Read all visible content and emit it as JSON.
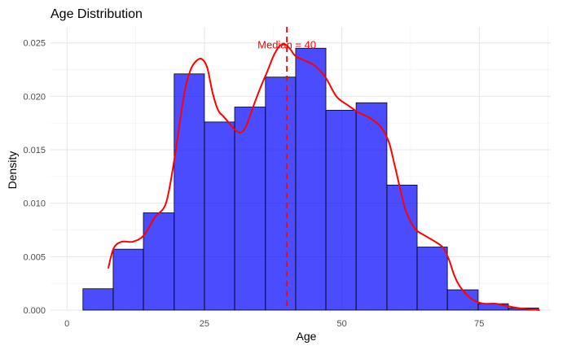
{
  "chart_data": {
    "type": "bar",
    "title": "Age Distribution",
    "xlabel": "Age",
    "ylabel": "Density",
    "xlim": [
      -3,
      88
    ],
    "ylim": [
      0,
      0.0265
    ],
    "x_ticks": [
      0,
      25,
      50,
      75
    ],
    "y_ticks": [
      0.0,
      0.005,
      0.01,
      0.015,
      0.02,
      0.025
    ],
    "y_tick_labels": [
      "0.000",
      "0.005",
      "0.010",
      "0.015",
      "0.020",
      "0.025"
    ],
    "grid": true,
    "bar_color": "#0000ff",
    "bar_edge_color": "#000000",
    "density_color": "#ff0000",
    "bins": [
      {
        "x0": 2.9,
        "x1": 8.4,
        "density": 0.002
      },
      {
        "x0": 8.4,
        "x1": 13.9,
        "density": 0.0057
      },
      {
        "x0": 13.9,
        "x1": 19.5,
        "density": 0.0091
      },
      {
        "x0": 19.5,
        "x1": 25.0,
        "density": 0.0221
      },
      {
        "x0": 25.0,
        "x1": 30.5,
        "density": 0.0176
      },
      {
        "x0": 30.5,
        "x1": 36.1,
        "density": 0.019
      },
      {
        "x0": 36.1,
        "x1": 41.6,
        "density": 0.0218
      },
      {
        "x0": 41.6,
        "x1": 47.1,
        "density": 0.0245
      },
      {
        "x0": 47.1,
        "x1": 52.6,
        "density": 0.0187
      },
      {
        "x0": 52.6,
        "x1": 58.2,
        "density": 0.0194
      },
      {
        "x0": 58.2,
        "x1": 63.7,
        "density": 0.0117
      },
      {
        "x0": 63.7,
        "x1": 69.2,
        "density": 0.0059
      },
      {
        "x0": 69.2,
        "x1": 74.8,
        "density": 0.0019
      },
      {
        "x0": 74.8,
        "x1": 80.3,
        "density": 0.0006
      },
      {
        "x0": 80.3,
        "x1": 85.8,
        "density": 0.0002
      }
    ],
    "density_curve": {
      "x": [
        7.5,
        8.5,
        10,
        12,
        14,
        16,
        18,
        19.5,
        20.5,
        21.5,
        22.5,
        23.5,
        24.5,
        25.5,
        26.5,
        27.5,
        28.5,
        29.5,
        30.5,
        31.5,
        32.5,
        33.5,
        34.5,
        35.5,
        36.5,
        37.5,
        38.5,
        39.5,
        40.5,
        41.5,
        43,
        45,
        47,
        49,
        51,
        53,
        55,
        57,
        58.5,
        59.5,
        60.5,
        61.5,
        62.5,
        63.5,
        65,
        67,
        68.5,
        69.5,
        70.5,
        71.5,
        73,
        74.5,
        76,
        78,
        80,
        82,
        84,
        86
      ],
      "y": [
        0.0039,
        0.0058,
        0.0064,
        0.0064,
        0.007,
        0.0087,
        0.01,
        0.014,
        0.0175,
        0.0207,
        0.0225,
        0.0233,
        0.0235,
        0.0227,
        0.0203,
        0.0187,
        0.0181,
        0.0175,
        0.0169,
        0.0166,
        0.0171,
        0.0185,
        0.0199,
        0.0212,
        0.0224,
        0.0237,
        0.0246,
        0.0249,
        0.0245,
        0.0238,
        0.0234,
        0.0229,
        0.0218,
        0.02,
        0.0192,
        0.0185,
        0.018,
        0.0172,
        0.0158,
        0.0138,
        0.0116,
        0.0095,
        0.0083,
        0.0075,
        0.007,
        0.0064,
        0.0058,
        0.0047,
        0.0032,
        0.0022,
        0.0013,
        0.0008,
        0.0006,
        0.0006,
        0.0004,
        0.0002,
        0.0001,
        0.0
      ]
    },
    "median": {
      "value": 40,
      "label": "Median = 40",
      "color": "#ff0000"
    }
  }
}
